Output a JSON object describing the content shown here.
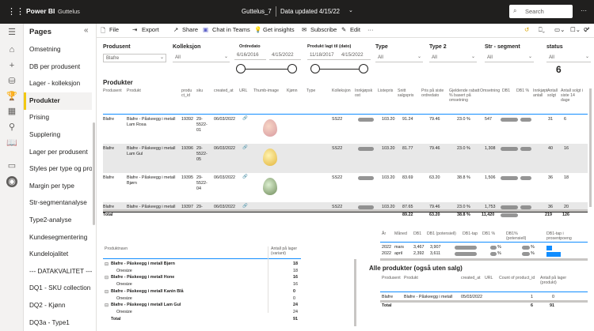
{
  "app": {
    "brand": "Power BI",
    "workspace": "Guttelus",
    "report_title": "Guttelus_7",
    "data_updated": "Data updated 4/15/22",
    "search_placeholder": "Search",
    "more": "···"
  },
  "nav": {
    "title": "Pages",
    "collapse": "«",
    "items": [
      "Omsetning",
      "DB per produsent",
      "Lager - kolleksjon",
      "Produkter",
      "Prising",
      "Supplering",
      "Lager per produsent",
      "Styles per type og pro...",
      "Margin per type",
      "Str-segmentanalyse",
      "Type2-analyse",
      "Kundesegmentering",
      "Kundelojalitet",
      "--- DATAKVALITET ---",
      "DQ1 - SKU collection",
      "DQ2 - Kjønn",
      "DQ3a - Type1"
    ],
    "active_index": 3
  },
  "toolbar": {
    "file": "File",
    "export": "Export",
    "share": "Share",
    "chat": "Chat in Teams",
    "insights": "Get insights",
    "subscribe": "Subscribe",
    "edit": "Edit",
    "more": "···"
  },
  "slicers": {
    "produsent": {
      "label": "Produsent",
      "value": "Blafre"
    },
    "kolleksjon": {
      "label": "Kolleksjon",
      "value": "All"
    },
    "ordredato": {
      "label": "Ordredato",
      "from": "6/16/2016",
      "to": "4/15/2022"
    },
    "produkt_lagt": {
      "label": "Produkt lagt til (dato)",
      "from": "11/18/2017",
      "to": "4/15/2022"
    },
    "type": {
      "label": "Type",
      "value": "All"
    },
    "type2": {
      "label": "Type 2",
      "value": "All"
    },
    "str_segment": {
      "label": "Str - segment",
      "value": "All"
    },
    "status": {
      "label": "status",
      "value": "All"
    },
    "count": "6"
  },
  "produkter": {
    "title": "Produkter",
    "headers": [
      "Produsent",
      "Produkt",
      "produ ct_id",
      "sku",
      "created_at",
      "URL",
      "Thumb-image",
      "Kjønn",
      "Type",
      "Kolleksjon",
      "Innkjøpsk ost",
      "Listepris",
      "Snitt salgspris",
      "Pris på siste ordredato",
      "Gjeldende rabatt % basert på omsetning",
      "Omsetning",
      "DB1",
      "DB1 %",
      "Innkjøpt antall",
      "Antall solgt",
      "Antall solgt i siste 14 dage"
    ],
    "rows": [
      {
        "produsent": "Blafre",
        "produkt": "Blafre - Påskeegg i metall Lam Rosa",
        "id": "19392",
        "sku": "29-5522-01",
        "created": "06/03/2022",
        "url": "🔗",
        "kolleksjon": "SS22",
        "liste": "103.20",
        "snitt": "91.24",
        "siste": "79.46",
        "rabatt": "23.0 %",
        "oms": "547",
        "innkjopt": "31",
        "solgt": "6"
      },
      {
        "produsent": "Blafre",
        "produkt": "Blafre - Påskeegg i metall Lam Gul",
        "id": "19396",
        "sku": "29-5522-05",
        "created": "06/03/2022",
        "url": "🔗",
        "kolleksjon": "SS22",
        "liste": "103.20",
        "snitt": "81.77",
        "siste": "79.46",
        "rabatt": "23.0 %",
        "oms": "1,308",
        "innkjopt": "40",
        "solgt": "16"
      },
      {
        "produsent": "Blafre",
        "produkt": "Blafre - Påskeegg i metall Bjørn",
        "id": "19395",
        "sku": "29-5522-04",
        "created": "06/03/2022",
        "url": "🔗",
        "kolleksjon": "SS22",
        "liste": "103.20",
        "snitt": "83.69",
        "siste": "63.20",
        "rabatt": "38.8 %",
        "oms": "1,506",
        "innkjopt": "36",
        "solgt": "18"
      },
      {
        "produsent": "Blafre",
        "produkt": "Blafre - Påskeegg i metall",
        "id": "19397",
        "sku": "29-",
        "created": "06/03/2022",
        "url": "🔗",
        "kolleksjon": "SS22",
        "liste": "103.20",
        "snitt": "87.65",
        "siste": "79.46",
        "rabatt": "23.0 %",
        "oms": "1,753",
        "innkjopt": "36",
        "solgt": "20"
      }
    ],
    "total": {
      "label": "Total",
      "snitt": "89.22",
      "siste": "63.20",
      "rabatt": "38.8 %",
      "oms": "11,420",
      "innkjopt": "219",
      "solgt": "126"
    }
  },
  "lager": {
    "headers": [
      "Produktnavn",
      "Antall på lager (variant)"
    ],
    "rows": [
      {
        "name": "Blafre - Påskeegg i metall Bjørn",
        "value": "18",
        "bold": true
      },
      {
        "name": "Onesize",
        "value": "18",
        "bold": false
      },
      {
        "name": "Blafre - Påskeegg i metall Hone",
        "value": "16",
        "bold": true
      },
      {
        "name": "Onesize",
        "value": "16",
        "bold": false
      },
      {
        "name": "Blafre - Påskeegg i metall Kanin Blå",
        "value": "0",
        "bold": true
      },
      {
        "name": "Onesize",
        "value": "0",
        "bold": false
      },
      {
        "name": "Blafre - Påskeegg i metall Lam Gul",
        "value": "24",
        "bold": true
      },
      {
        "name": "Onesize",
        "value": "24",
        "bold": false
      }
    ],
    "total": {
      "label": "Total",
      "value": "91"
    }
  },
  "db_table": {
    "headers": [
      "År",
      "Måned",
      "DB1",
      "DB1 (potensiell)",
      "DB1-tap",
      "DB1 %",
      "DB1% (potensiell)",
      "DB1-tap i prosentpoeng"
    ],
    "rows": [
      {
        "ar": "2022",
        "maned": "mars",
        "db1": "3,467",
        "pot": "3,907",
        "tap": "",
        "pct": "%",
        "pct_pot": "%",
        "tap_pp": 0.35
      },
      {
        "ar": "2022",
        "maned": "april",
        "db1": "2,392",
        "pot": "3,611",
        "tap": "",
        "pct": "%",
        "pct_pot": "%",
        "tap_pp": 0.9
      }
    ]
  },
  "alle": {
    "title": "Alle produkter (også uten salg)",
    "headers": [
      "Produsent",
      "Produkt",
      "created_at",
      "URL",
      "Count of product_id",
      "Antall på lager (produkt)"
    ],
    "rows": [
      {
        "produsent": "Blafre",
        "produkt": "Blafre - Påskeegg i metall",
        "created": "05/03/2022",
        "count": "1",
        "lager": "0"
      }
    ],
    "total": {
      "label": "Total",
      "count": "6",
      "lager": "91"
    }
  },
  "colors": {
    "header": "#201f1e",
    "accent": "#f2c811",
    "blue": "#118dff"
  }
}
